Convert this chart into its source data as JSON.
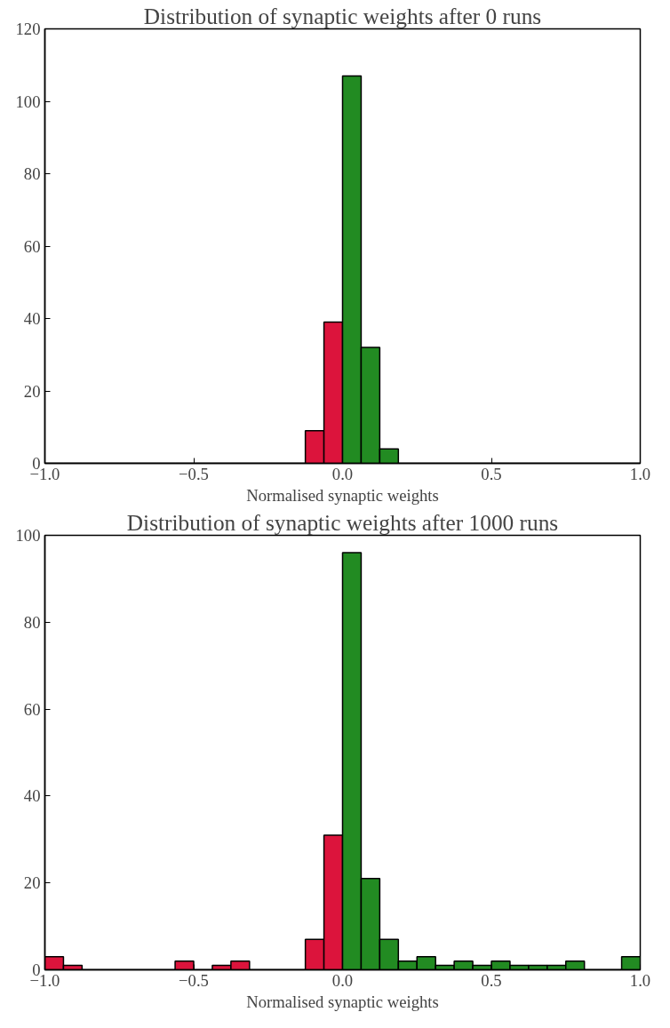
{
  "chart_data": [
    {
      "type": "histogram",
      "title": "Distribution of synaptic weights after 0 runs",
      "xlabel": "Normalised synaptic weights",
      "bins": [
        -1.0,
        -0.9375,
        -0.875,
        -0.8125,
        -0.75,
        -0.6875,
        -0.625,
        -0.5625,
        -0.5,
        -0.4375,
        -0.375,
        -0.3125,
        -0.25,
        -0.1875,
        -0.125,
        -0.0625,
        0.0,
        0.0625,
        0.125,
        0.1875,
        0.25,
        0.3125,
        0.375,
        0.4375,
        0.5,
        0.5625,
        0.625,
        0.6875,
        0.75,
        0.8125,
        0.875,
        0.9375,
        1.0
      ],
      "values": [
        0,
        0,
        0,
        0,
        0,
        0,
        0,
        0,
        0,
        0,
        0,
        0,
        0,
        0,
        9,
        39,
        107,
        32,
        4,
        0,
        0,
        0,
        0,
        0,
        0,
        0,
        0,
        0,
        0,
        0,
        0,
        0
      ],
      "colors": [
        "#dc143c",
        "#dc143c",
        "#dc143c",
        "#dc143c",
        "#dc143c",
        "#dc143c",
        "#dc143c",
        "#dc143c",
        "#dc143c",
        "#dc143c",
        "#dc143c",
        "#dc143c",
        "#dc143c",
        "#dc143c",
        "#dc143c",
        "#dc143c",
        "#228b22",
        "#228b22",
        "#228b22",
        "#228b22",
        "#228b22",
        "#228b22",
        "#228b22",
        "#228b22",
        "#228b22",
        "#228b22",
        "#228b22",
        "#228b22",
        "#228b22",
        "#228b22",
        "#228b22",
        "#228b22"
      ],
      "xlim": [
        -1.0,
        1.0
      ],
      "xticks": [
        {
          "value": -1.0,
          "label": "−1.0"
        },
        {
          "value": -0.5,
          "label": "−0.5"
        },
        {
          "value": 0.0,
          "label": "0.0"
        },
        {
          "value": 0.5,
          "label": "0.5"
        },
        {
          "value": 1.0,
          "label": "1.0"
        }
      ],
      "ylim": [
        0,
        120
      ],
      "yticks": [
        0,
        20,
        40,
        60,
        80,
        100,
        120
      ],
      "grid": false
    },
    {
      "type": "histogram",
      "title": "Distribution of synaptic weights after 1000 runs",
      "xlabel": "Normalised synaptic weights",
      "bins": [
        -1.0,
        -0.9375,
        -0.875,
        -0.8125,
        -0.75,
        -0.6875,
        -0.625,
        -0.5625,
        -0.5,
        -0.4375,
        -0.375,
        -0.3125,
        -0.25,
        -0.1875,
        -0.125,
        -0.0625,
        0.0,
        0.0625,
        0.125,
        0.1875,
        0.25,
        0.3125,
        0.375,
        0.4375,
        0.5,
        0.5625,
        0.625,
        0.6875,
        0.75,
        0.8125,
        0.875,
        0.9375,
        1.0
      ],
      "values": [
        3,
        1,
        0,
        0,
        0,
        0,
        0,
        2,
        0,
        1,
        2,
        0,
        0,
        0,
        7,
        31,
        96,
        21,
        7,
        2,
        3,
        1,
        2,
        1,
        2,
        1,
        1,
        1,
        2,
        0,
        0,
        3
      ],
      "colors": [
        "#dc143c",
        "#dc143c",
        "#dc143c",
        "#dc143c",
        "#dc143c",
        "#dc143c",
        "#dc143c",
        "#dc143c",
        "#dc143c",
        "#dc143c",
        "#dc143c",
        "#dc143c",
        "#dc143c",
        "#dc143c",
        "#dc143c",
        "#dc143c",
        "#228b22",
        "#228b22",
        "#228b22",
        "#228b22",
        "#228b22",
        "#228b22",
        "#228b22",
        "#228b22",
        "#228b22",
        "#228b22",
        "#228b22",
        "#228b22",
        "#228b22",
        "#228b22",
        "#228b22",
        "#228b22"
      ],
      "xlim": [
        -1.0,
        1.0
      ],
      "xticks": [
        {
          "value": -1.0,
          "label": "−1.0"
        },
        {
          "value": -0.5,
          "label": "−0.5"
        },
        {
          "value": 0.0,
          "label": "0.0"
        },
        {
          "value": 0.5,
          "label": "0.5"
        },
        {
          "value": 1.0,
          "label": "1.0"
        }
      ],
      "ylim": [
        0,
        100
      ],
      "yticks": [
        0,
        20,
        40,
        60,
        80,
        100
      ],
      "grid": false
    }
  ]
}
